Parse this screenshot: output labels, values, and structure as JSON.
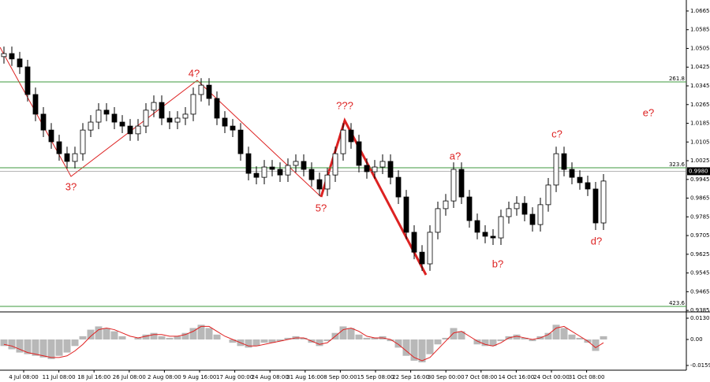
{
  "chart_data": {
    "type": "candlestick",
    "x": [
      "4 Jul 08:00",
      "11 Jul 08:00",
      "18 Jul 16:00",
      "26 Jul 08:00",
      "2 Aug 08:00",
      "9 Aug 16:00",
      "17 Aug 00:00",
      "24 Aug 08:00",
      "31 Aug 16:00",
      "8 Sep 00:00",
      "15 Sep 08:00",
      "22 Sep 16:00",
      "30 Sep 00:00",
      "7 Oct 08:00",
      "14 Oct 16:00",
      "24 Oct 00:00",
      "31 Oct 08:00"
    ],
    "candles": [
      [
        1.047,
        1.0513,
        1.044,
        1.0483
      ],
      [
        1.0483,
        1.0513,
        1.043,
        1.046
      ],
      [
        1.046,
        1.049,
        1.0396,
        1.0426
      ],
      [
        1.0426,
        1.0456,
        1.0278,
        1.0308
      ],
      [
        1.0308,
        1.0338,
        1.0194,
        1.0224
      ],
      [
        1.0224,
        1.0254,
        1.0126,
        1.0156
      ],
      [
        1.0156,
        1.0186,
        1.0076,
        1.0106
      ],
      [
        1.0106,
        1.0136,
        1.0025,
        1.0055
      ],
      [
        1.0055,
        1.0085,
        0.9992,
        1.0022
      ],
      [
        1.0022,
        1.0085,
        0.9992,
        1.0055
      ],
      [
        1.0055,
        1.0186,
        1.0025,
        1.0156
      ],
      [
        1.0156,
        1.022,
        1.0126,
        1.019
      ],
      [
        1.019,
        1.0271,
        1.016,
        1.0241
      ],
      [
        1.0241,
        1.0271,
        1.0194,
        1.0224
      ],
      [
        1.0224,
        1.0254,
        1.016,
        1.019
      ],
      [
        1.019,
        1.022,
        1.0143,
        1.0173
      ],
      [
        1.0173,
        1.0203,
        1.011,
        1.014
      ],
      [
        1.014,
        1.0203,
        1.011,
        1.0173
      ],
      [
        1.0173,
        1.0271,
        1.0143,
        1.0241
      ],
      [
        1.0241,
        1.0304,
        1.0211,
        1.0274
      ],
      [
        1.0274,
        1.0304,
        1.0177,
        1.0207
      ],
      [
        1.0207,
        1.0237,
        1.016,
        1.019
      ],
      [
        1.019,
        1.0237,
        1.016,
        1.0207
      ],
      [
        1.0207,
        1.0254,
        1.0177,
        1.0224
      ],
      [
        1.0224,
        1.0338,
        1.0194,
        1.0308
      ],
      [
        1.0308,
        1.0378,
        1.0278,
        1.0348
      ],
      [
        1.0348,
        1.0378,
        1.0261,
        1.0291
      ],
      [
        1.0291,
        1.0321,
        1.0177,
        1.0207
      ],
      [
        1.0207,
        1.0237,
        1.0143,
        1.0173
      ],
      [
        1.0173,
        1.0203,
        1.0126,
        1.0156
      ],
      [
        1.0156,
        1.0186,
        1.0025,
        1.0055
      ],
      [
        1.0055,
        1.0085,
        0.9941,
        0.9971
      ],
      [
        0.9971,
        1.0001,
        0.9924,
        0.9954
      ],
      [
        0.9954,
        1.0028,
        0.9924,
        0.9998
      ],
      [
        0.9998,
        1.0028,
        0.9958,
        0.9988
      ],
      [
        0.9988,
        1.0018,
        0.9934,
        0.9964
      ],
      [
        0.9964,
        1.0035,
        0.9934,
        1.0005
      ],
      [
        1.0005,
        1.0052,
        0.9975,
        1.0022
      ],
      [
        1.0022,
        1.0052,
        0.9958,
        0.9988
      ],
      [
        0.9988,
        1.0018,
        0.9914,
        0.9944
      ],
      [
        0.9944,
        0.9974,
        0.9874,
        0.9904
      ],
      [
        0.9904,
        0.9994,
        0.9874,
        0.9964
      ],
      [
        0.9964,
        1.0085,
        0.9934,
        1.0055
      ],
      [
        1.0055,
        1.0186,
        1.0025,
        1.0156
      ],
      [
        1.0156,
        1.0186,
        1.0076,
        1.0106
      ],
      [
        1.0106,
        1.0136,
        0.9975,
        1.0005
      ],
      [
        1.0005,
        1.0035,
        0.9948,
        0.9978
      ],
      [
        0.9978,
        1.0028,
        0.9948,
        0.9998
      ],
      [
        0.9998,
        1.0052,
        0.9968,
        1.0022
      ],
      [
        1.0022,
        1.0052,
        0.9924,
        0.9954
      ],
      [
        0.9954,
        0.9984,
        0.984,
        0.987
      ],
      [
        0.987,
        0.99,
        0.9689,
        0.9719
      ],
      [
        0.9719,
        0.9749,
        0.9604,
        0.9634
      ],
      [
        0.9634,
        0.9664,
        0.9554,
        0.9584
      ],
      [
        0.9584,
        0.9749,
        0.9554,
        0.9719
      ],
      [
        0.9719,
        0.985,
        0.9689,
        0.982
      ],
      [
        0.982,
        0.9883,
        0.979,
        0.9853
      ],
      [
        0.9853,
        1.0018,
        0.9823,
        0.9988
      ],
      [
        0.9988,
        1.0018,
        0.984,
        0.987
      ],
      [
        0.987,
        0.99,
        0.9739,
        0.9769
      ],
      [
        0.9769,
        0.9799,
        0.9689,
        0.9719
      ],
      [
        0.9719,
        0.9749,
        0.9672,
        0.9702
      ],
      [
        0.9702,
        0.9732,
        0.9665,
        0.9695
      ],
      [
        0.9695,
        0.9816,
        0.9665,
        0.9786
      ],
      [
        0.9786,
        0.985,
        0.9756,
        0.982
      ],
      [
        0.982,
        0.9873,
        0.979,
        0.9843
      ],
      [
        0.9843,
        0.9873,
        0.9766,
        0.9796
      ],
      [
        0.9796,
        0.9826,
        0.9722,
        0.9752
      ],
      [
        0.9752,
        0.9867,
        0.9722,
        0.9837
      ],
      [
        0.9837,
        0.9951,
        0.9807,
        0.9921
      ],
      [
        0.9921,
        1.0085,
        0.9891,
        1.0055
      ],
      [
        1.0055,
        1.0085,
        0.9958,
        0.9988
      ],
      [
        0.9988,
        1.0018,
        0.9924,
        0.9954
      ],
      [
        0.9954,
        0.9984,
        0.9901,
        0.9931
      ],
      [
        0.9931,
        0.9961,
        0.9874,
        0.9904
      ],
      [
        0.9904,
        0.9934,
        0.9729,
        0.9759
      ],
      [
        0.9759,
        0.9968,
        0.9729,
        0.9938
      ]
    ],
    "color": "#000000",
    "ylim": [
      0.9382,
      1.0712
    ],
    "yticks": [
      1.0665,
      1.0585,
      1.0505,
      1.0425,
      1.0345,
      1.0265,
      1.0185,
      1.0105,
      1.0025,
      0.9945,
      0.9865,
      0.9785,
      0.9705,
      0.9625,
      0.9545,
      0.9465,
      0.9385
    ],
    "current_price": {
      "value": 0.998,
      "label": "0.9980"
    },
    "levels": [
      {
        "label": "261.8",
        "value": 1.0362
      },
      {
        "label": "323.6",
        "value": 0.9995
      },
      {
        "label": "423.6",
        "value": 0.9402
      }
    ],
    "level_color": "#3c9a3c",
    "annotations": [
      "3?",
      "4?",
      "5?",
      "???",
      "a?",
      "b?",
      "c?",
      "d?",
      "e?"
    ],
    "annotation_color": "#dd2222",
    "oscillator": {
      "ylim": [
        -0.0188,
        0.0164
      ],
      "yticks": [
        0.01303,
        {
          "value": 0,
          "label": "0.00"
        },
        -0.0159
      ],
      "histogram_color": "#b8b8b8",
      "signal_color": "#e02020",
      "histogram": [
        -0.004,
        -0.006,
        -0.008,
        -0.009,
        -0.01,
        -0.011,
        -0.012,
        -0.01,
        -0.008,
        -0.004,
        0.002,
        0.006,
        0.008,
        0.007,
        0.005,
        0.002,
        0.0,
        0.001,
        0.003,
        0.004,
        0.002,
        0.001,
        0.002,
        0.004,
        0.007,
        0.009,
        0.007,
        0.003,
        0.0,
        -0.002,
        -0.004,
        -0.005,
        -0.004,
        -0.002,
        -0.002,
        -0.001,
        0.001,
        0.002,
        0.001,
        -0.002,
        -0.004,
        -0.001,
        0.004,
        0.008,
        0.007,
        0.003,
        0.001,
        0.001,
        0.002,
        -0.001,
        -0.005,
        -0.01,
        -0.013,
        -0.014,
        -0.009,
        -0.003,
        0.001,
        0.007,
        0.005,
        0.0,
        -0.003,
        -0.004,
        -0.004,
        -0.001,
        0.002,
        0.003,
        0.001,
        -0.001,
        0.002,
        0.004,
        0.009,
        0.007,
        0.003,
        0.001,
        -0.002,
        -0.007,
        0.002
      ],
      "signal": [
        -0.003,
        -0.004,
        -0.006,
        -0.008,
        -0.009,
        -0.01,
        -0.011,
        -0.011,
        -0.01,
        -0.007,
        -0.003,
        0.002,
        0.006,
        0.007,
        0.006,
        0.004,
        0.002,
        0.001,
        0.002,
        0.003,
        0.003,
        0.002,
        0.002,
        0.003,
        0.005,
        0.008,
        0.008,
        0.005,
        0.002,
        0.0,
        -0.002,
        -0.004,
        -0.004,
        -0.003,
        -0.002,
        -0.001,
        0.0,
        0.001,
        0.001,
        -0.001,
        -0.003,
        -0.002,
        0.002,
        0.006,
        0.007,
        0.005,
        0.002,
        0.001,
        0.001,
        0.0,
        -0.003,
        -0.007,
        -0.011,
        -0.013,
        -0.011,
        -0.006,
        -0.001,
        0.004,
        0.005,
        0.002,
        -0.001,
        -0.003,
        -0.004,
        -0.002,
        0.001,
        0.002,
        0.001,
        0.0,
        0.001,
        0.003,
        0.007,
        0.008,
        0.005,
        0.002,
        -0.001,
        -0.005,
        -0.002
      ]
    }
  }
}
